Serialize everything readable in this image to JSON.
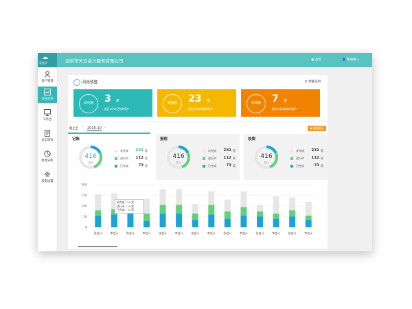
{
  "app": {
    "logo_text": "云会计",
    "company": "深圳市天云会计服务有限公司",
    "home_label": "首页",
    "user_label": "陈晓峰"
  },
  "sidebar": {
    "items": [
      {
        "label": "客户管理",
        "icon": "user-icon",
        "active": false
      },
      {
        "label": "流程监测",
        "icon": "chart-icon",
        "active": true
      },
      {
        "label": "工作台",
        "icon": "monitor-icon",
        "active": false
      },
      {
        "label": "员工绩效",
        "icon": "document-icon",
        "active": false
      },
      {
        "label": "经营分析",
        "icon": "pie-icon",
        "active": false
      },
      {
        "label": "权限设置",
        "icon": "gear-icon",
        "active": false
      }
    ]
  },
  "risk": {
    "title": "风险预警",
    "link": "预警说明",
    "cards": [
      {
        "circle": "未记账",
        "num": "3",
        "unit": "家",
        "desc": "超过2月未记账的用户",
        "color": "#2cb9b6"
      },
      {
        "circle": "未报税",
        "num": "23",
        "unit": "家",
        "desc": "超过2月未报税的用户",
        "color": "#f5b800"
      },
      {
        "circle": "未收款",
        "num": "7",
        "unit": "家",
        "desc": "超过2月未收款的用户",
        "color": "#f08300"
      }
    ]
  },
  "period": {
    "label": "截止至",
    "value": "2015-10",
    "legend_button": "数据显示"
  },
  "stats": [
    {
      "title": "记账",
      "total": "416",
      "total_label": "总计",
      "rows": [
        {
          "label": "未完成",
          "value": "231",
          "unit": "家",
          "color": "#e6e6e6"
        },
        {
          "label": "进行中",
          "value": "112",
          "unit": "家",
          "color": "#5fd07b"
        },
        {
          "label": "已完成",
          "value": "73",
          "unit": "家",
          "color": "#1aa3d8"
        }
      ]
    },
    {
      "title": "报税",
      "total": "416",
      "total_label": "总计",
      "rows": [
        {
          "label": "未完成",
          "value": "231",
          "unit": "家",
          "color": "#e6e6e6"
        },
        {
          "label": "进行中",
          "value": "112",
          "unit": "家",
          "color": "#5fd07b"
        },
        {
          "label": "已完成",
          "value": "73",
          "unit": "家",
          "color": "#1aa3d8"
        }
      ]
    },
    {
      "title": "收费",
      "total": "416",
      "total_label": "总计",
      "rows": [
        {
          "label": "未完成",
          "value": "231",
          "unit": "家",
          "color": "#e6e6e6"
        },
        {
          "label": "进行中",
          "value": "112",
          "unit": "家",
          "color": "#5fd07b"
        },
        {
          "label": "已完成",
          "value": "73",
          "unit": "家",
          "color": "#1aa3d8"
        }
      ]
    }
  ],
  "tooltip": {
    "lines": [
      "未完成：20 家",
      "进行中：10 家",
      "已完成：75 家"
    ]
  },
  "chart_data": {
    "type": "bar",
    "stacked": true,
    "ylim": [
      0,
      200
    ],
    "yticks": [
      0,
      50,
      100,
      150,
      200
    ],
    "categories": [
      "张会计",
      "李会计",
      "陈会计",
      "李会计",
      "张会计",
      "李会计",
      "张会计",
      "李会计",
      "张会计",
      "李会计",
      "张会计",
      "李会计",
      "张会计",
      "李会计"
    ],
    "series": [
      {
        "name": "已完成",
        "color": "#1aa3d8",
        "values": [
          55,
          60,
          75,
          30,
          65,
          65,
          35,
          60,
          40,
          55,
          50,
          40,
          50,
          35
        ]
      },
      {
        "name": "进行中",
        "color": "#5fd07b",
        "values": [
          25,
          25,
          10,
          35,
          40,
          40,
          30,
          45,
          35,
          40,
          25,
          25,
          30,
          20
        ]
      },
      {
        "name": "未完成",
        "color": "#e6e6e6",
        "values": [
          75,
          75,
          20,
          70,
          75,
          75,
          45,
          65,
          55,
          75,
          30,
          80,
          60,
          65
        ]
      }
    ]
  }
}
